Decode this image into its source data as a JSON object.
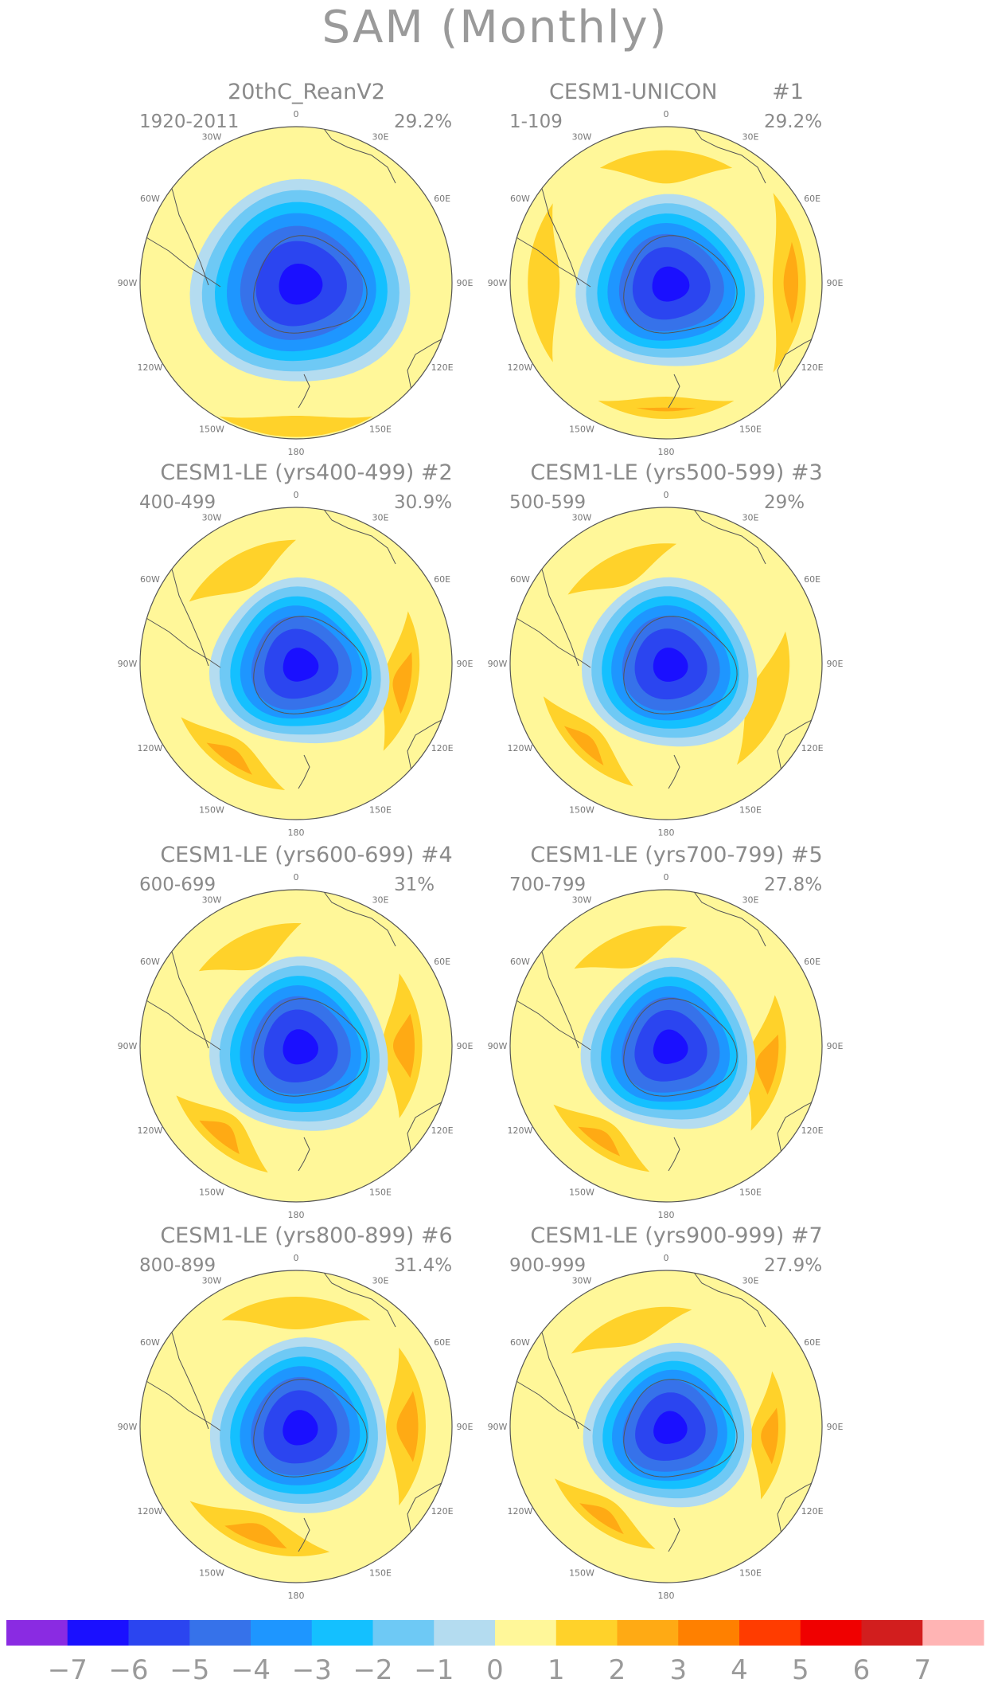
{
  "title": "SAM (Monthly)",
  "panels": [
    {
      "title": "20thC_ReanV2",
      "period": "1920-2011",
      "variance": "29.2%"
    },
    {
      "title": "CESM1-UNICON        #1",
      "period": "1-109",
      "variance": "29.2%"
    },
    {
      "title": "CESM1-LE (yrs400-499) #2",
      "period": "400-499",
      "variance": "30.9%"
    },
    {
      "title": "CESM1-LE (yrs500-599) #3",
      "period": "500-599",
      "variance": "29%"
    },
    {
      "title": "CESM1-LE (yrs600-699) #4",
      "period": "600-699",
      "variance": "31%"
    },
    {
      "title": "CESM1-LE (yrs700-799) #5",
      "period": "700-799",
      "variance": "27.8%"
    },
    {
      "title": "CESM1-LE (yrs800-899) #6",
      "period": "800-899",
      "variance": "31.4%"
    },
    {
      "title": "CESM1-LE (yrs900-999) #7",
      "period": "900-999",
      "variance": "27.9%"
    }
  ],
  "longitude_labels": [
    "0",
    "30E",
    "60E",
    "90E",
    "120E",
    "150E",
    "180",
    "150W",
    "120W",
    "90W",
    "60W",
    "30W"
  ],
  "colorbar": {
    "colors": [
      "#8a2be2",
      "#1a10ff",
      "#2b45f0",
      "#3672ea",
      "#1e96ff",
      "#14c0ff",
      "#6ec9f5",
      "#b4dcf0",
      "#fff799",
      "#ffd22a",
      "#ffaa14",
      "#ff8000",
      "#ff3c00",
      "#f00000",
      "#d21e1e",
      "#ffb4b4"
    ],
    "labels": [
      "−7",
      "−6",
      "−5",
      "−4",
      "−3",
      "−2",
      "−1",
      "0",
      "1",
      "2",
      "3",
      "4",
      "5",
      "6",
      "7"
    ]
  }
}
